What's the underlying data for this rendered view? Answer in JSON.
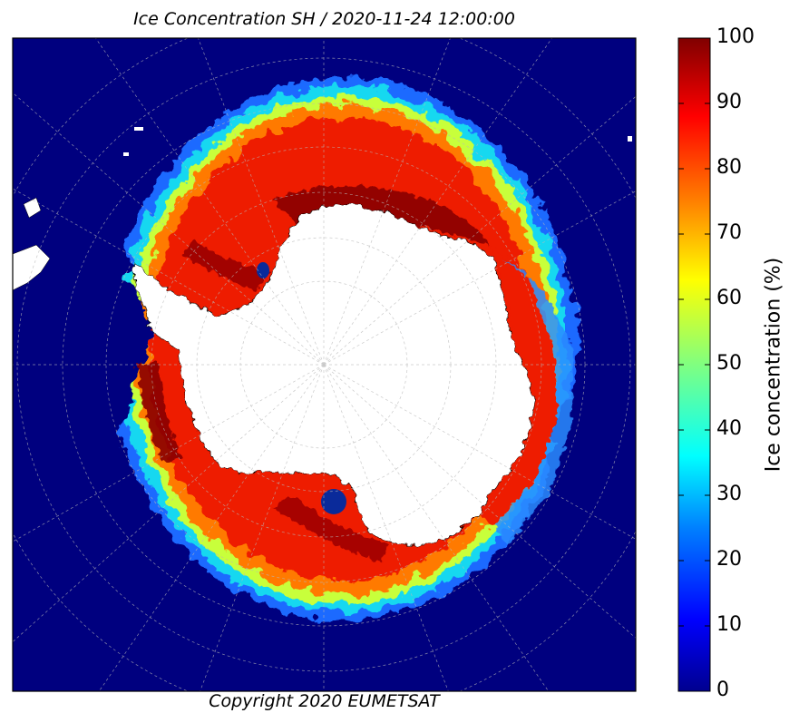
{
  "title": "Ice Concentration SH / 2020-11-24 12:00:00",
  "copyright": "Copyright 2020 EUMETSAT",
  "colorbar": {
    "label": "Ice concentration (%)",
    "ticks": [
      "0",
      "10",
      "20",
      "30",
      "40",
      "50",
      "60",
      "70",
      "80",
      "90",
      "100"
    ],
    "colors": [
      "#00008f",
      "#0000ff",
      "#0080ff",
      "#00ffff",
      "#80ff80",
      "#ffff00",
      "#ff8000",
      "#ff0000",
      "#800000"
    ]
  },
  "map": {
    "projection": "south-polar-stereographic",
    "ocean_color": "#00007f",
    "land_color": "#ffffff",
    "grid": true
  }
}
